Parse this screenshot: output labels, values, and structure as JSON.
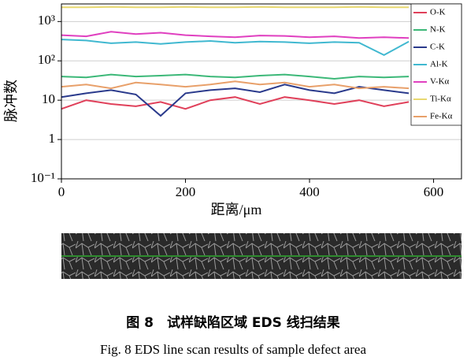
{
  "chart_data": {
    "type": "line",
    "xlabel": "距离/μm",
    "ylabel": "脉冲数",
    "x": [
      0,
      40,
      80,
      120,
      160,
      200,
      240,
      280,
      320,
      360,
      400,
      440,
      480,
      520,
      560
    ],
    "series": [
      {
        "name": "O-K",
        "color": "#e0405a",
        "values": [
          6,
          10,
          8,
          7,
          9,
          6,
          10,
          12,
          8,
          12,
          10,
          8,
          10,
          7,
          9
        ]
      },
      {
        "name": "N-K",
        "color": "#3cb878",
        "values": [
          40,
          38,
          45,
          40,
          42,
          45,
          40,
          38,
          42,
          45,
          40,
          35,
          40,
          38,
          40
        ]
      },
      {
        "name": "C-K",
        "color": "#2a3a8c",
        "values": [
          12,
          15,
          18,
          14,
          4,
          15,
          18,
          20,
          16,
          25,
          18,
          15,
          22,
          18,
          15
        ]
      },
      {
        "name": "Al-K",
        "color": "#40b8d0",
        "values": [
          350,
          330,
          280,
          300,
          270,
          300,
          320,
          290,
          310,
          300,
          280,
          300,
          290,
          140,
          310
        ]
      },
      {
        "name": "V-Kα",
        "color": "#e040c0",
        "values": [
          450,
          420,
          550,
          480,
          520,
          450,
          420,
          400,
          440,
          430,
          400,
          420,
          380,
          400,
          380
        ]
      },
      {
        "name": "Ti-Kα",
        "color": "#e8d870",
        "values": [
          2300,
          2300,
          2350,
          2300,
          2300,
          2350,
          2300,
          2300,
          2350,
          2300,
          2300,
          2300,
          2350,
          2300,
          2300
        ]
      },
      {
        "name": "Fe-Kα",
        "color": "#e8a06a",
        "values": [
          22,
          25,
          20,
          28,
          25,
          22,
          25,
          30,
          25,
          28,
          22,
          25,
          20,
          22,
          20
        ]
      }
    ],
    "xlim": [
      0,
      645
    ],
    "xticks": [
      0,
      200,
      400,
      600
    ],
    "ylim": [
      0.1,
      2800
    ],
    "ylog": true,
    "yticks": [
      {
        "value": 0.1,
        "label": "10⁻¹"
      },
      1,
      10,
      {
        "value": 100,
        "label": "10²"
      },
      {
        "value": 1000,
        "label": "10³"
      }
    ],
    "grid": true,
    "legend": "upper right"
  },
  "caption_cn": "图 8　试样缺陷区域 EDS 线扫结果",
  "caption_en": "Fig. 8 EDS line scan results of sample defect area"
}
